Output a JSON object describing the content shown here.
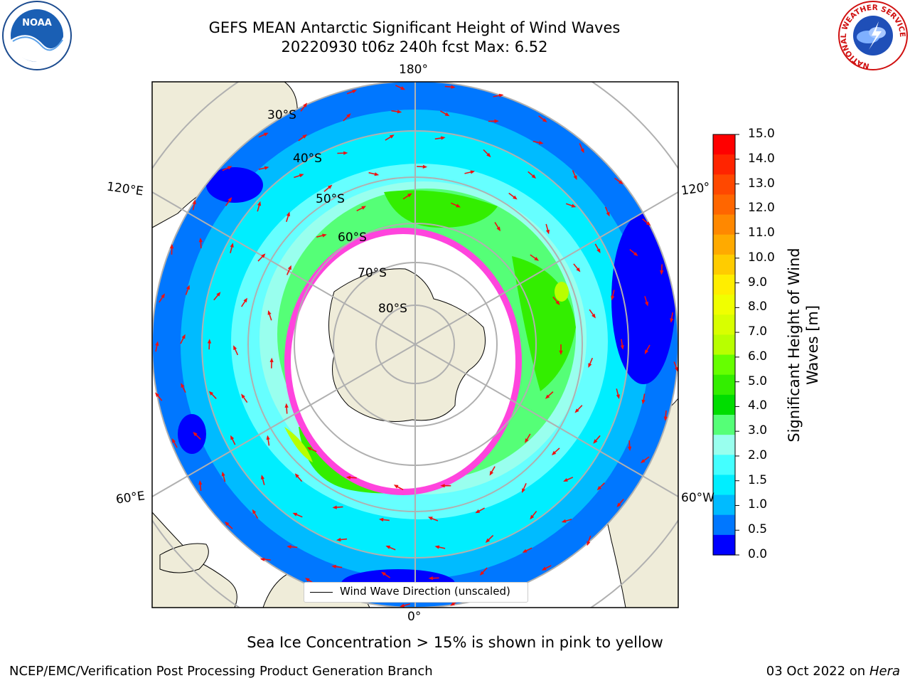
{
  "title": {
    "line1": "GEFS MEAN Antarctic Significant Height of Wind Waves",
    "line2": "20220930 t06z 240h fcst   Max: 6.52"
  },
  "map": {
    "projection": "south-polar-stereographic",
    "longitude_labels": [
      "180°",
      "120°E",
      "120°",
      "60°E",
      "60°W",
      "0°"
    ],
    "latitude_labels": [
      "30°S",
      "40°S",
      "50°S",
      "60°S",
      "70°S",
      "80°S"
    ],
    "legend_label": "Wind Wave Direction (unscaled)",
    "land_color": "#efecd9",
    "ice_color": "#ff44dd",
    "arrow_color": "#ee1111"
  },
  "colorbar": {
    "title_line1": "Significant Height of Wind",
    "title_line2": "Waves [m]",
    "ticks": [
      "15.0",
      "14.0",
      "13.0",
      "12.0",
      "11.0",
      "10.0",
      "9.0",
      "8.0",
      "7.0",
      "6.0",
      "5.0",
      "4.0",
      "3.0",
      "2.0",
      "1.5",
      "1.0",
      "0.5",
      "0.0"
    ],
    "colors_top_to_bottom": [
      "#ff0000",
      "#ff2400",
      "#ff4800",
      "#ff6600",
      "#ff8800",
      "#ffaa00",
      "#ffcc00",
      "#ffee00",
      "#f0ff00",
      "#d8ff00",
      "#b8ff00",
      "#66ff00",
      "#33ee00",
      "#00dd00",
      "#55ff77",
      "#99ffee",
      "#44ffff",
      "#00eeff",
      "#00bbff",
      "#0077ff",
      "#0000ff"
    ]
  },
  "logos": {
    "noaa": "NOAA",
    "nws_ring": "NATIONAL WEATHER SERVICE"
  },
  "footer": {
    "sea_ice_note": "Sea Ice Concentration > 15% is shown in pink to yellow",
    "branch": "NCEP/EMC/Verification Post Processing Product Generation Branch",
    "date": "03 Oct 2022 on ",
    "machine": "Hera"
  }
}
